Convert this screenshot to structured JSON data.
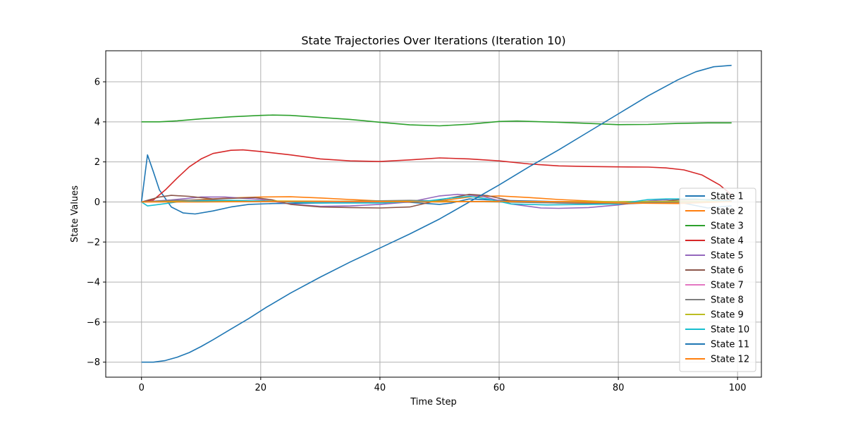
{
  "chart_data": {
    "type": "line",
    "title": "State Trajectories Over Iterations (Iteration 10)",
    "xlabel": "Time Step",
    "ylabel": "State Values",
    "xlim": [
      -6,
      104
    ],
    "ylim": [
      -8.75,
      7.55
    ],
    "xticks": [
      0,
      20,
      40,
      60,
      80,
      100
    ],
    "yticks": [
      -8,
      -6,
      -4,
      -2,
      0,
      2,
      4,
      6
    ],
    "grid": true,
    "legend_position": "right",
    "series": [
      {
        "name": "State 1",
        "color": "#1f77b4",
        "points": [
          [
            0,
            0
          ],
          [
            1,
            2.35
          ],
          [
            2,
            1.5
          ],
          [
            3,
            0.6
          ],
          [
            5,
            -0.25
          ],
          [
            7,
            -0.55
          ],
          [
            9,
            -0.6
          ],
          [
            12,
            -0.45
          ],
          [
            15,
            -0.25
          ],
          [
            18,
            -0.12
          ],
          [
            22,
            -0.08
          ],
          [
            30,
            -0.05
          ],
          [
            40,
            0
          ],
          [
            45,
            -0.02
          ],
          [
            50,
            -0.12
          ],
          [
            52,
            -0.05
          ],
          [
            55,
            0.15
          ],
          [
            60,
            0.08
          ],
          [
            70,
            0.02
          ],
          [
            80,
            0
          ],
          [
            90,
            0
          ],
          [
            95,
            -0.3
          ],
          [
            99,
            -0.2
          ]
        ]
      },
      {
        "name": "State 2",
        "color": "#ff7f0e",
        "points": [
          [
            0,
            0
          ],
          [
            5,
            0.05
          ],
          [
            10,
            0.12
          ],
          [
            15,
            0.2
          ],
          [
            20,
            0.25
          ],
          [
            25,
            0.26
          ],
          [
            30,
            0.2
          ],
          [
            35,
            0.12
          ],
          [
            40,
            0.05
          ],
          [
            45,
            0
          ],
          [
            50,
            0.05
          ],
          [
            55,
            0.25
          ],
          [
            60,
            0.3
          ],
          [
            65,
            0.22
          ],
          [
            70,
            0.12
          ],
          [
            75,
            0.05
          ],
          [
            80,
            0
          ],
          [
            85,
            -0.05
          ],
          [
            90,
            -0.05
          ],
          [
            95,
            0
          ],
          [
            99,
            0.05
          ]
        ]
      },
      {
        "name": "State 3",
        "color": "#2ca02c",
        "points": [
          [
            0,
            4
          ],
          [
            3,
            4
          ],
          [
            6,
            4.05
          ],
          [
            10,
            4.15
          ],
          [
            15,
            4.25
          ],
          [
            20,
            4.32
          ],
          [
            22,
            4.34
          ],
          [
            25,
            4.32
          ],
          [
            30,
            4.22
          ],
          [
            35,
            4.12
          ],
          [
            40,
            3.98
          ],
          [
            45,
            3.85
          ],
          [
            50,
            3.8
          ],
          [
            55,
            3.88
          ],
          [
            60,
            4.02
          ],
          [
            63,
            4.04
          ],
          [
            70,
            3.98
          ],
          [
            75,
            3.92
          ],
          [
            80,
            3.86
          ],
          [
            85,
            3.87
          ],
          [
            90,
            3.92
          ],
          [
            95,
            3.95
          ],
          [
            99,
            3.95
          ]
        ]
      },
      {
        "name": "State 4",
        "color": "#d62728",
        "points": [
          [
            0,
            0
          ],
          [
            2,
            0.1
          ],
          [
            4,
            0.6
          ],
          [
            6,
            1.2
          ],
          [
            8,
            1.75
          ],
          [
            10,
            2.15
          ],
          [
            12,
            2.42
          ],
          [
            15,
            2.58
          ],
          [
            17,
            2.6
          ],
          [
            20,
            2.52
          ],
          [
            25,
            2.35
          ],
          [
            30,
            2.15
          ],
          [
            35,
            2.05
          ],
          [
            40,
            2.02
          ],
          [
            45,
            2.1
          ],
          [
            50,
            2.2
          ],
          [
            55,
            2.15
          ],
          [
            60,
            2.05
          ],
          [
            65,
            1.9
          ],
          [
            70,
            1.8
          ],
          [
            75,
            1.77
          ],
          [
            80,
            1.75
          ],
          [
            85,
            1.74
          ],
          [
            88,
            1.7
          ],
          [
            91,
            1.6
          ],
          [
            94,
            1.35
          ],
          [
            97,
            0.85
          ],
          [
            99,
            0.35
          ]
        ]
      },
      {
        "name": "State 5",
        "color": "#9467bd",
        "points": [
          [
            0,
            0
          ],
          [
            5,
            0.1
          ],
          [
            10,
            0.25
          ],
          [
            14,
            0.25
          ],
          [
            20,
            0.12
          ],
          [
            25,
            -0.1
          ],
          [
            30,
            -0.22
          ],
          [
            35,
            -0.2
          ],
          [
            40,
            -0.12
          ],
          [
            45,
            0
          ],
          [
            50,
            0.3
          ],
          [
            53,
            0.38
          ],
          [
            57,
            0.3
          ],
          [
            62,
            -0.1
          ],
          [
            67,
            -0.3
          ],
          [
            70,
            -0.32
          ],
          [
            75,
            -0.28
          ],
          [
            80,
            -0.15
          ],
          [
            85,
            0.05
          ],
          [
            90,
            0.15
          ],
          [
            95,
            0.1
          ],
          [
            99,
            0.05
          ]
        ]
      },
      {
        "name": "State 6",
        "color": "#8c564b",
        "points": [
          [
            0,
            0
          ],
          [
            3,
            0.25
          ],
          [
            5,
            0.33
          ],
          [
            8,
            0.28
          ],
          [
            12,
            0.15
          ],
          [
            15,
            0.18
          ],
          [
            19,
            0.22
          ],
          [
            22,
            0.1
          ],
          [
            25,
            -0.12
          ],
          [
            30,
            -0.25
          ],
          [
            35,
            -0.28
          ],
          [
            40,
            -0.3
          ],
          [
            45,
            -0.25
          ],
          [
            50,
            0.1
          ],
          [
            55,
            0.38
          ],
          [
            58,
            0.32
          ],
          [
            62,
            0.05
          ],
          [
            70,
            -0.05
          ],
          [
            80,
            -0.1
          ],
          [
            85,
            -0.05
          ],
          [
            90,
            0.1
          ],
          [
            95,
            0.12
          ],
          [
            99,
            0.1
          ]
        ]
      },
      {
        "name": "State 7",
        "color": "#e377c2",
        "points": [
          [
            0,
            0
          ],
          [
            10,
            0.02
          ],
          [
            20,
            0.03
          ],
          [
            30,
            0.02
          ],
          [
            40,
            0.01
          ],
          [
            50,
            0.02
          ],
          [
            60,
            0.01
          ],
          [
            70,
            0
          ],
          [
            80,
            0.01
          ],
          [
            90,
            0.02
          ],
          [
            99,
            0.02
          ]
        ]
      },
      {
        "name": "State 8",
        "color": "#7f7f7f",
        "points": [
          [
            0,
            0
          ],
          [
            5,
            0.08
          ],
          [
            10,
            0.1
          ],
          [
            20,
            0.05
          ],
          [
            30,
            0.02
          ],
          [
            40,
            0.06
          ],
          [
            45,
            0.08
          ],
          [
            50,
            0.05
          ],
          [
            55,
            0.02
          ],
          [
            60,
            0
          ],
          [
            70,
            -0.05
          ],
          [
            80,
            -0.05
          ],
          [
            90,
            0
          ],
          [
            99,
            0.02
          ]
        ]
      },
      {
        "name": "State 9",
        "color": "#bcbd22",
        "points": [
          [
            0,
            0
          ],
          [
            10,
            0.04
          ],
          [
            20,
            0.05
          ],
          [
            30,
            0.04
          ],
          [
            40,
            0.03
          ],
          [
            50,
            0.03
          ],
          [
            60,
            0.02
          ],
          [
            70,
            0.02
          ],
          [
            80,
            0.02
          ],
          [
            90,
            0.03
          ],
          [
            99,
            0.03
          ]
        ]
      },
      {
        "name": "State 10",
        "color": "#17becf",
        "points": [
          [
            0,
            0
          ],
          [
            1,
            -0.2
          ],
          [
            3,
            -0.12
          ],
          [
            6,
            0
          ],
          [
            10,
            0.05
          ],
          [
            15,
            0.08
          ],
          [
            20,
            0.05
          ],
          [
            25,
            0
          ],
          [
            30,
            -0.05
          ],
          [
            40,
            -0.05
          ],
          [
            48,
            0.05
          ],
          [
            52,
            0.2
          ],
          [
            55,
            0.28
          ],
          [
            58,
            0.15
          ],
          [
            62,
            -0.1
          ],
          [
            68,
            -0.15
          ],
          [
            75,
            -0.12
          ],
          [
            80,
            -0.1
          ],
          [
            85,
            0.12
          ],
          [
            88,
            0.15
          ],
          [
            93,
            0.15
          ],
          [
            96,
            0.08
          ],
          [
            99,
            0.05
          ]
        ]
      },
      {
        "name": "State 11",
        "color": "#1f77b4",
        "points": [
          [
            0,
            -8
          ],
          [
            2,
            -8
          ],
          [
            4,
            -7.92
          ],
          [
            6,
            -7.75
          ],
          [
            8,
            -7.52
          ],
          [
            10,
            -7.22
          ],
          [
            12,
            -6.88
          ],
          [
            15,
            -6.35
          ],
          [
            18,
            -5.82
          ],
          [
            21,
            -5.25
          ],
          [
            25,
            -4.55
          ],
          [
            30,
            -3.75
          ],
          [
            35,
            -3
          ],
          [
            40,
            -2.3
          ],
          [
            45,
            -1.6
          ],
          [
            50,
            -0.85
          ],
          [
            55,
            0
          ],
          [
            60,
            0.85
          ],
          [
            65,
            1.75
          ],
          [
            70,
            2.6
          ],
          [
            75,
            3.5
          ],
          [
            80,
            4.4
          ],
          [
            85,
            5.3
          ],
          [
            90,
            6.1
          ],
          [
            93,
            6.5
          ],
          [
            96,
            6.75
          ],
          [
            99,
            6.82
          ]
        ]
      },
      {
        "name": "State 12",
        "color": "#ff7f0e",
        "points": [
          [
            0,
            0
          ],
          [
            10,
            0
          ],
          [
            20,
            0.02
          ],
          [
            30,
            0.03
          ],
          [
            40,
            0.02
          ],
          [
            50,
            0
          ],
          [
            55,
            0.02
          ],
          [
            60,
            0.03
          ],
          [
            70,
            0.02
          ],
          [
            80,
            -0.05
          ],
          [
            90,
            -0.08
          ],
          [
            99,
            0.02
          ]
        ]
      }
    ]
  }
}
